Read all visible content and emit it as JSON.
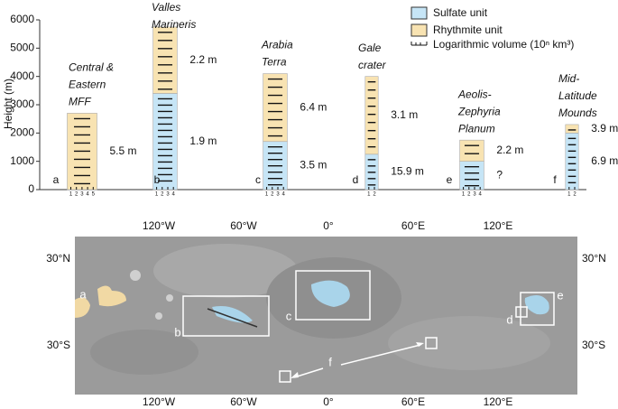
{
  "chart_data": {
    "type": "stacked-column",
    "ylabel": "Height (m)",
    "ylim": [
      0,
      6000
    ],
    "yticks": [
      0,
      1000,
      2000,
      3000,
      4000,
      5000,
      6000
    ],
    "letters": [
      "a",
      "b",
      "c",
      "d",
      "e",
      "f"
    ],
    "categories": [
      [
        "Central &",
        "Eastern",
        "MFF"
      ],
      [
        "Valles",
        "Marineris"
      ],
      [
        "Arabia",
        "Terra"
      ],
      [
        "Gale",
        "crater"
      ],
      [
        "Aeolis-",
        "Zephyria",
        "Planum"
      ],
      [
        "Mid-",
        "Latitude",
        "Mounds"
      ]
    ],
    "volume_scales": [
      [
        1,
        2,
        3,
        4,
        5
      ],
      [
        1,
        2,
        3,
        4
      ],
      [
        1,
        2,
        3,
        4
      ],
      [
        1,
        2
      ],
      [
        1,
        2,
        3,
        4
      ],
      [
        1,
        2
      ]
    ],
    "series": [
      {
        "name": "Sulfate unit",
        "color": "#c6e5f6",
        "values": [
          null,
          3400,
          1700,
          1250,
          1000,
          2000
        ],
        "thickness_labels": [
          null,
          "1.9 m",
          "3.5 m",
          "15.9 m",
          "?",
          "6.9 m"
        ]
      },
      {
        "name": "Rhythmite unit",
        "color": "#f8e3b2",
        "values": [
          2700,
          2350,
          2400,
          2750,
          750,
          300
        ],
        "thickness_labels": [
          "5.5 m",
          "2.2 m",
          "6.4 m",
          "3.1 m",
          "2.2 m",
          "3.9 m"
        ]
      }
    ],
    "hatch_legend": "Logarithmic volume (10ⁿ km³)"
  },
  "map": {
    "lon_labels": [
      "120°W",
      "60°W",
      "0°",
      "60°E",
      "120°E"
    ],
    "lat_labels": [
      "30°N",
      "30°S"
    ],
    "box_labels": [
      "a",
      "b",
      "c",
      "d",
      "e",
      "f"
    ]
  }
}
